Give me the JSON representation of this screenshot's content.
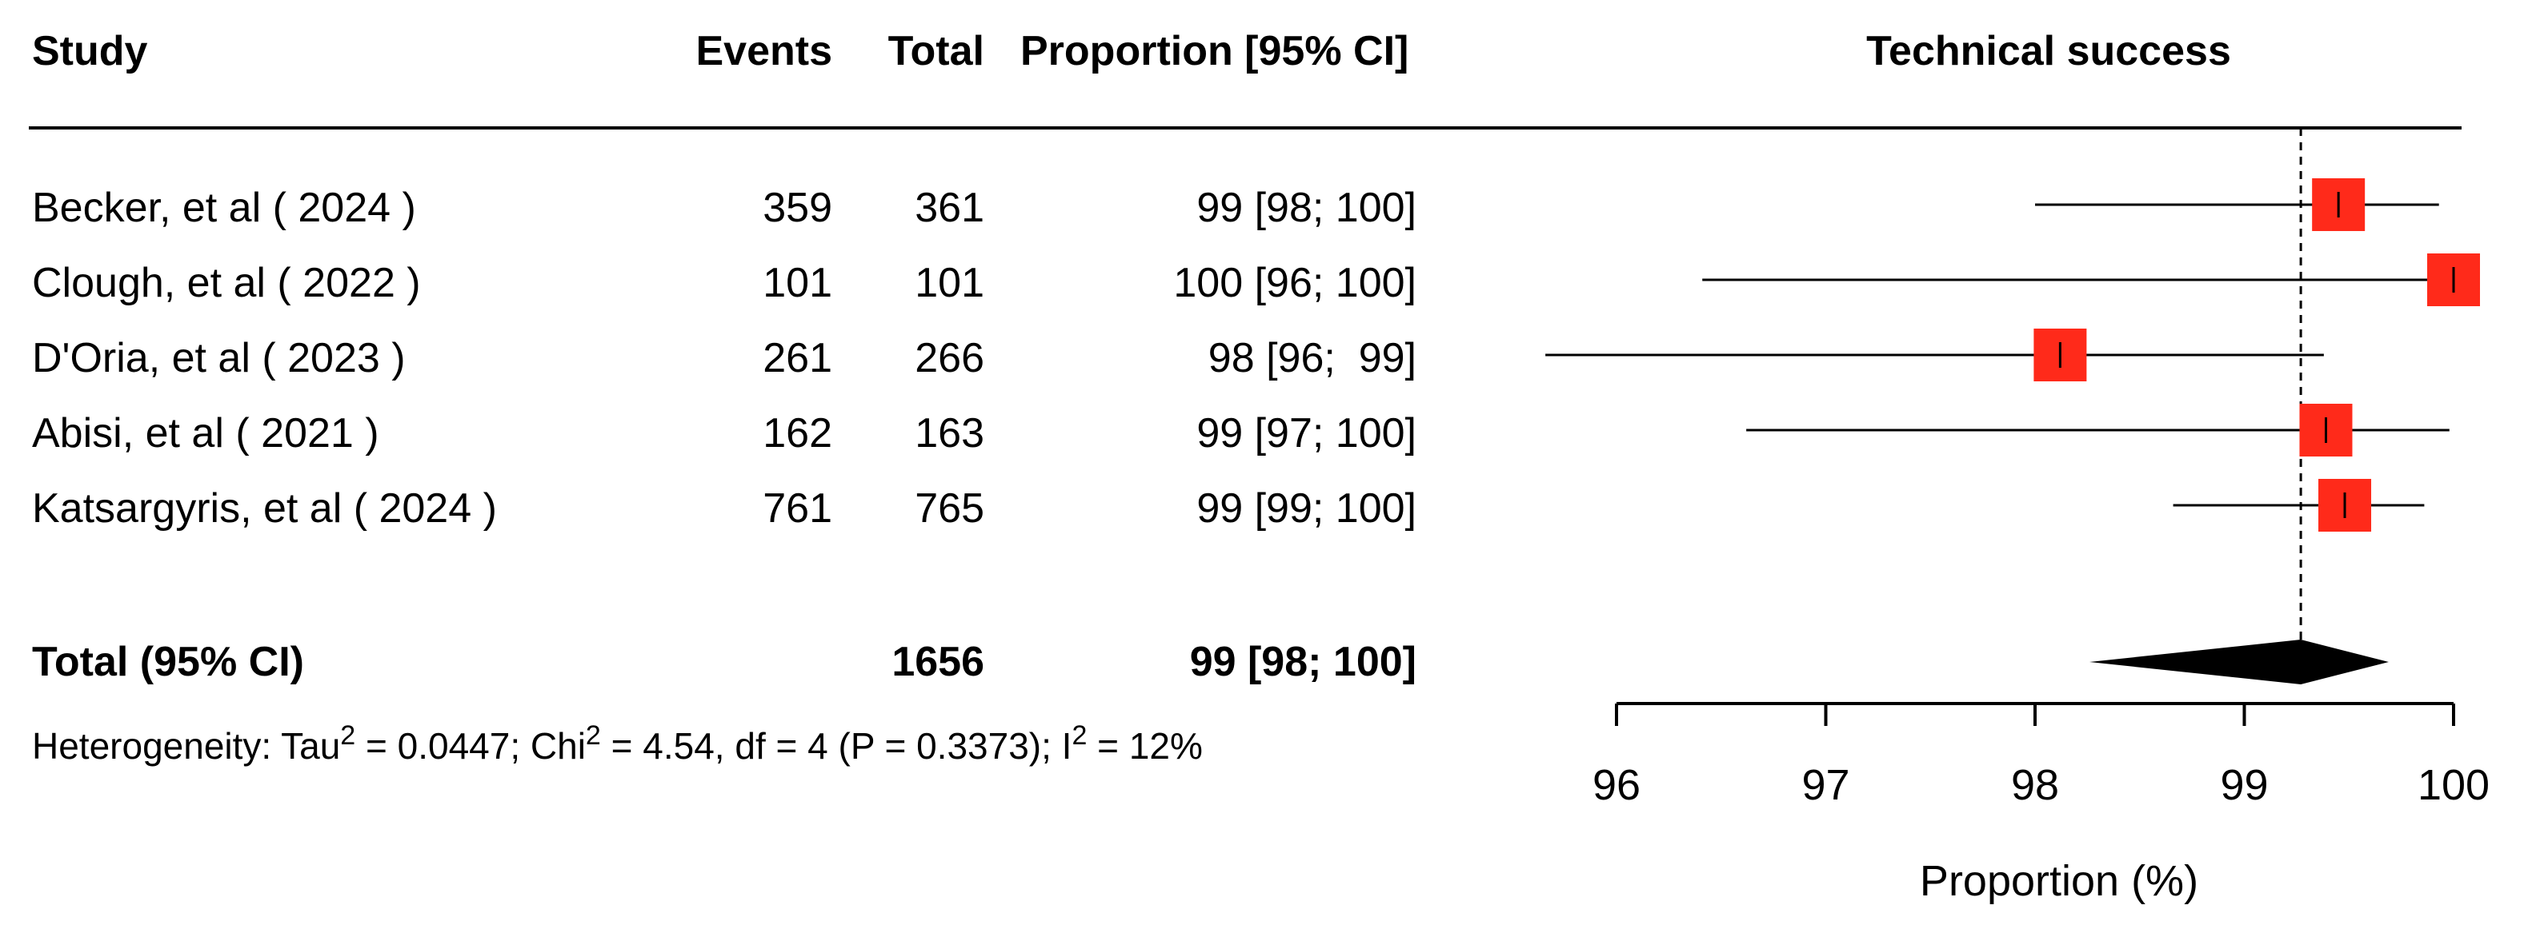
{
  "headers": {
    "study": "Study",
    "events": "Events",
    "total": "Total",
    "proportion": "Proportion [95% CI]",
    "plot_title": "Technical success"
  },
  "studies": [
    {
      "name": "Becker, et al ( 2024 )",
      "events": "359",
      "total": "361",
      "ci_text": "99 [98; 100]"
    },
    {
      "name": "Clough, et al ( 2022 )",
      "events": "101",
      "total": "101",
      "ci_text": "100 [96; 100]"
    },
    {
      "name": "D'Oria, et al ( 2023 )",
      "events": "261",
      "total": "266",
      "ci_text": "98 [96;  99]"
    },
    {
      "name": "Abisi, et al ( 2021 )",
      "events": "162",
      "total": "163",
      "ci_text": "99 [97; 100]"
    },
    {
      "name": "Katsargyris, et al ( 2024 )",
      "events": "761",
      "total": "765",
      "ci_text": "99 [99; 100]"
    }
  ],
  "total_row": {
    "label": "Total (95% CI)",
    "total": "1656",
    "ci_text": "99 [98; 100]"
  },
  "heterogeneity": {
    "prefix": "Heterogeneity: Tau",
    "tau2": " = 0.0447; Chi",
    "chi2": " = 4.54, df = 4 (P = 0.3373); I",
    "i2": " = 12%",
    "sup": "2"
  },
  "colors": {
    "square": "#ff2a1a",
    "line": "#000000",
    "diamond": "#000000"
  },
  "chart_data": {
    "type": "forest",
    "title": "Technical success",
    "xlabel": "Proportion (%)",
    "xlim": [
      96,
      100
    ],
    "ticks": [
      96,
      97,
      98,
      99,
      100
    ],
    "reference_line": 99.27,
    "studies": [
      {
        "name": "Becker, et al ( 2024 )",
        "estimate": 99.45,
        "lower": 98.0,
        "upper": 99.93
      },
      {
        "name": "Clough, et al ( 2022 )",
        "estimate": 100.0,
        "lower": 96.41,
        "upper": 100.0
      },
      {
        "name": "D'Oria, et al ( 2023 )",
        "estimate": 98.12,
        "lower": 95.66,
        "upper": 99.38
      },
      {
        "name": "Abisi, et al ( 2021 )",
        "estimate": 99.39,
        "lower": 96.62,
        "upper": 99.98
      },
      {
        "name": "Katsargyris, et al ( 2024 )",
        "estimate": 99.48,
        "lower": 98.66,
        "upper": 99.86
      }
    ],
    "pooled": {
      "estimate": 99.27,
      "lower": 98.26,
      "upper": 99.69
    }
  }
}
